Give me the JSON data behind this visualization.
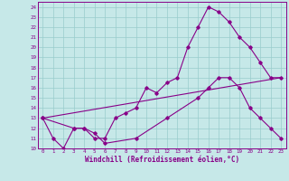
{
  "xlabel": "Windchill (Refroidissement éolien,°C)",
  "bg_color": "#c6e8e8",
  "line_color": "#880088",
  "grid_color": "#99cccc",
  "xlim": [
    -0.5,
    23.5
  ],
  "ylim": [
    10,
    24.5
  ],
  "xticks": [
    0,
    1,
    2,
    3,
    4,
    5,
    6,
    7,
    8,
    9,
    10,
    11,
    12,
    13,
    14,
    15,
    16,
    17,
    18,
    19,
    20,
    21,
    22,
    23
  ],
  "yticks": [
    10,
    11,
    12,
    13,
    14,
    15,
    16,
    17,
    18,
    19,
    20,
    21,
    22,
    23,
    24
  ],
  "line1_x": [
    0,
    1,
    2,
    3,
    4,
    5,
    6,
    7,
    8,
    9,
    10,
    11,
    12,
    13,
    14,
    15,
    16,
    17,
    18,
    19,
    20,
    21,
    22,
    23
  ],
  "line1_y": [
    13,
    11,
    10,
    12,
    12,
    11,
    11,
    13,
    13.5,
    14,
    16,
    15.5,
    16.5,
    17,
    20,
    22,
    24,
    23.5,
    22.5,
    21,
    20,
    18.5,
    17,
    17
  ],
  "line2_x": [
    0,
    3,
    4,
    5,
    6,
    9,
    12,
    15,
    16,
    17,
    18,
    19,
    20,
    21,
    22,
    23
  ],
  "line2_y": [
    13,
    12,
    12,
    11.5,
    10.5,
    11,
    13,
    15,
    16,
    17,
    17,
    16,
    14,
    13,
    12,
    11
  ],
  "line3_x": [
    0,
    23
  ],
  "line3_y": [
    13,
    17
  ]
}
